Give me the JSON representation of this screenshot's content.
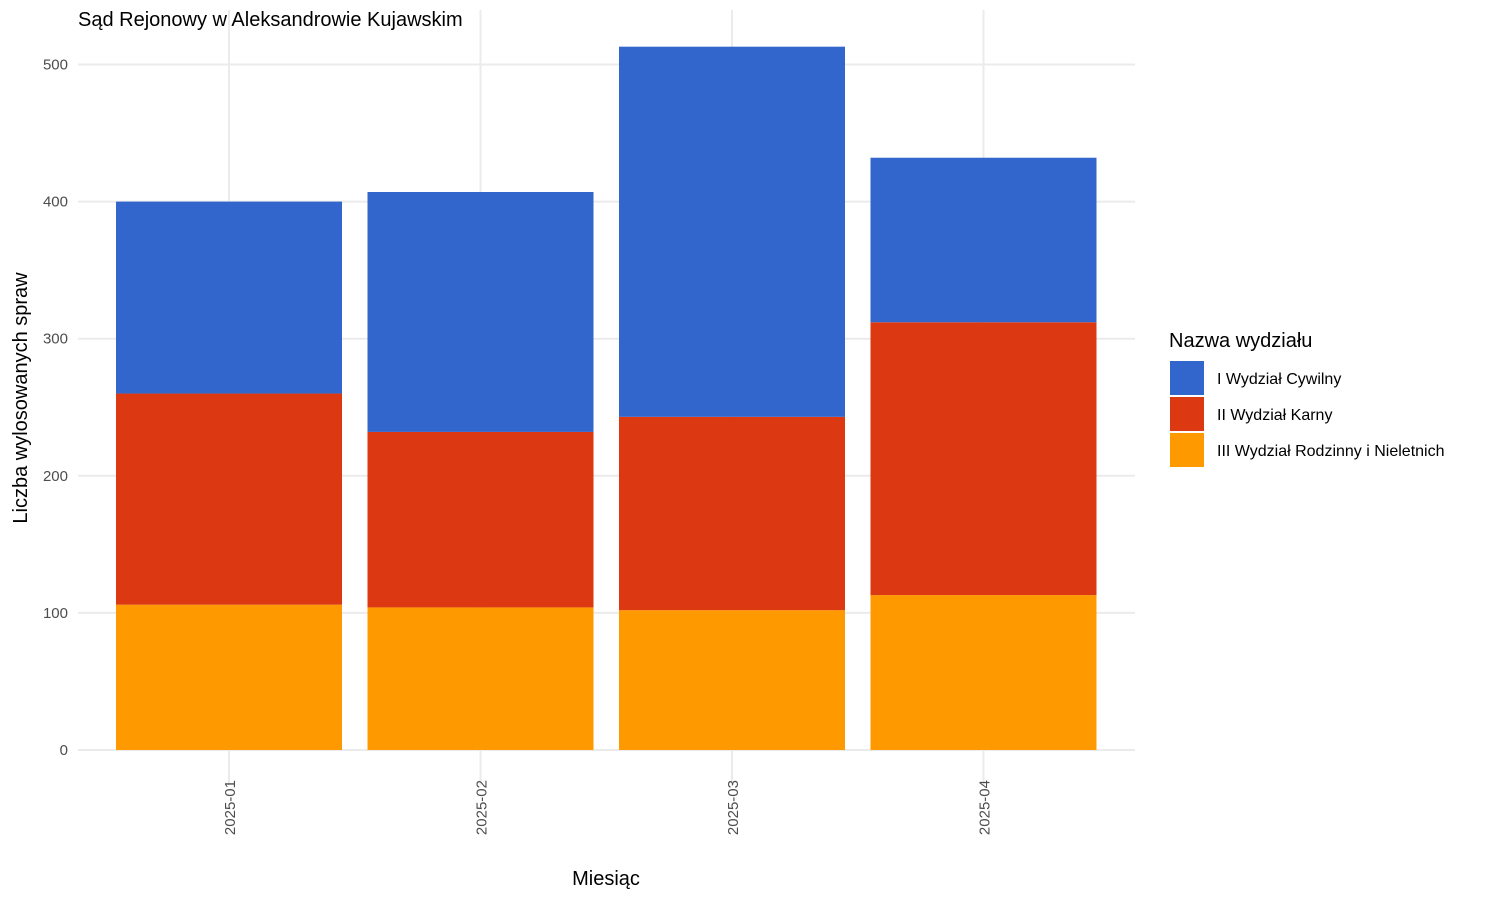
{
  "chart_data": {
    "type": "bar",
    "stacked": true,
    "title": "Sąd Rejonowy w Aleksandrowie Kujawskim",
    "xlabel": "Miesiąc",
    "ylabel": "Liczba wylosowanych spraw",
    "categories": [
      "2025-01",
      "2025-02",
      "2025-03",
      "2025-04"
    ],
    "ylim": [
      0,
      525
    ],
    "yticks": [
      0,
      100,
      200,
      300,
      400,
      500
    ],
    "grid": true,
    "legend": {
      "title": "Nazwa wydziału",
      "placement": "right"
    },
    "series": [
      {
        "name": "III Wydział Rodzinny i Nieletnich",
        "color": "#FF9900",
        "values": [
          106,
          104,
          102,
          113
        ]
      },
      {
        "name": "II Wydział Karny",
        "color": "#DC3912",
        "values": [
          154,
          128,
          141,
          199
        ]
      },
      {
        "name": "I Wydział Cywilny",
        "color": "#3366CC",
        "values": [
          140,
          175,
          270,
          120
        ]
      }
    ],
    "legend_order": [
      "I Wydział Cywilny",
      "II Wydział Karny",
      "III Wydział Rodzinny i Nieletnich"
    ]
  }
}
